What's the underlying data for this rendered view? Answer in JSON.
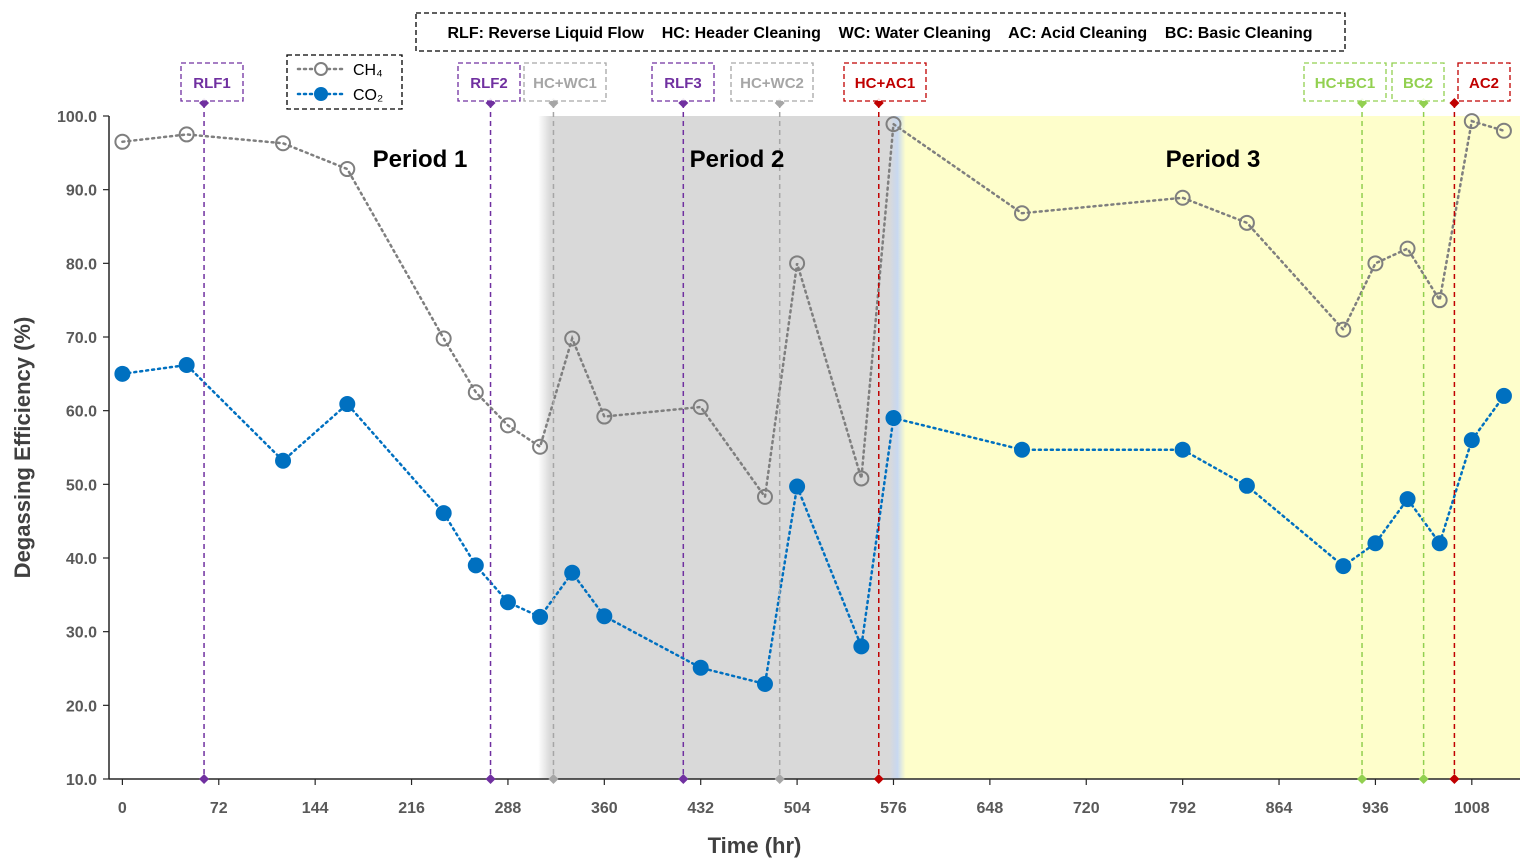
{
  "chart_data": {
    "type": "scatter",
    "title": "",
    "xlabel": "Time (hr)",
    "ylabel": "Degassing Efficiency (%)",
    "xlim": [
      -10,
      1044
    ],
    "ylim": [
      10,
      100
    ],
    "xticks": [
      0,
      72,
      144,
      216,
      288,
      360,
      432,
      504,
      576,
      648,
      720,
      792,
      864,
      936,
      1008
    ],
    "yticks": [
      10.0,
      20.0,
      30.0,
      40.0,
      50.0,
      60.0,
      70.0,
      80.0,
      90.0,
      100.0
    ],
    "legend": {
      "placement": "top"
    },
    "note": "RLF: Reverse Liquid Flow    HC: Header Cleaning    WC: Water Cleaning    AC: Acid Cleaning    BC: Basic Cleaning",
    "series": [
      {
        "name": "CH₄",
        "color": "#7f7f7f",
        "marker": "open-circle",
        "line": "dotted",
        "points": [
          [
            0,
            96.5
          ],
          [
            48,
            97.5
          ],
          [
            120,
            96.3
          ],
          [
            168,
            92.8
          ],
          [
            240,
            69.8
          ],
          [
            264,
            62.5
          ],
          [
            288,
            58.0
          ],
          [
            312,
            55.1
          ],
          [
            336,
            69.8
          ],
          [
            360,
            59.2
          ],
          [
            432,
            60.5
          ],
          [
            480,
            48.3
          ],
          [
            504,
            80.0
          ],
          [
            552,
            50.8
          ],
          [
            576,
            98.9
          ],
          [
            672,
            86.8
          ],
          [
            792,
            88.9
          ],
          [
            840,
            85.5
          ],
          [
            912,
            71.0
          ],
          [
            936,
            80.0
          ],
          [
            960,
            82.0
          ],
          [
            984,
            75.0
          ],
          [
            1008,
            99.3
          ],
          [
            1032,
            98.0
          ]
        ]
      },
      {
        "name": "CO₂",
        "color": "#0070c0",
        "marker": "filled-circle",
        "line": "dotted",
        "points": [
          [
            0,
            65.0
          ],
          [
            48,
            66.2
          ],
          [
            120,
            53.2
          ],
          [
            168,
            60.9
          ],
          [
            240,
            46.1
          ],
          [
            264,
            39.0
          ],
          [
            288,
            34.0
          ],
          [
            312,
            32.0
          ],
          [
            336,
            38.0
          ],
          [
            360,
            32.1
          ],
          [
            432,
            25.1
          ],
          [
            480,
            22.9
          ],
          [
            504,
            49.7
          ],
          [
            552,
            28.0
          ],
          [
            576,
            59.0
          ],
          [
            672,
            54.7
          ],
          [
            792,
            54.7
          ],
          [
            840,
            49.8
          ],
          [
            912,
            38.9
          ],
          [
            936,
            42.0
          ],
          [
            960,
            48.0
          ],
          [
            984,
            42.0
          ],
          [
            1008,
            56.0
          ],
          [
            1032,
            62.0
          ]
        ]
      }
    ],
    "periods": [
      {
        "label": "Period 1",
        "start": -10,
        "end": 315,
        "color": "#ffffff"
      },
      {
        "label": "Period 2",
        "start": 315,
        "end": 579,
        "color": "#d9d9d9"
      },
      {
        "label": "Period 3",
        "start": 579,
        "end": 1044,
        "color": "#fefecb"
      }
    ],
    "events": [
      {
        "label": "RLF1",
        "x": 61,
        "color": "#7030a0"
      },
      {
        "label": "RLF2",
        "x": 275,
        "color": "#7030a0"
      },
      {
        "label": "HC+WC1",
        "x": 322,
        "color": "#a6a6a6"
      },
      {
        "label": "RLF3",
        "x": 419,
        "color": "#7030a0"
      },
      {
        "label": "HC+WC2",
        "x": 491,
        "color": "#a6a6a6"
      },
      {
        "label": "HC+AC1",
        "x": 565,
        "color": "#c00000"
      },
      {
        "label": "HC+BC1",
        "x": 926,
        "color": "#92d050"
      },
      {
        "label": "BC2",
        "x": 972,
        "color": "#92d050"
      },
      {
        "label": "AC2",
        "x": 995,
        "color": "#c00000"
      }
    ]
  }
}
